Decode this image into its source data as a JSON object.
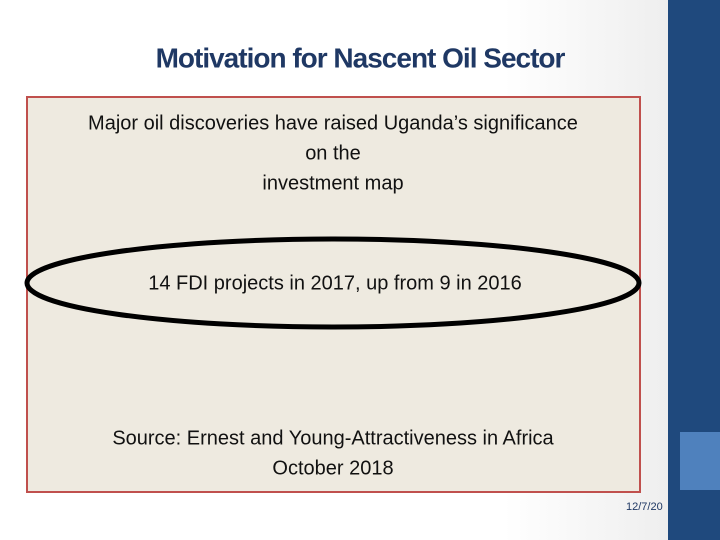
{
  "header": {
    "title": "Motivation for Nascent Oil Sector"
  },
  "box": {
    "intro_lines": [
      "Major oil discoveries have raised Uganda’s significance",
      "on the",
      "investment map"
    ],
    "highlight": "14 FDI projects  in 2017, up from 9 in 2016",
    "source_lines": [
      "Source: Ernest and Young-Attractiveness in Africa",
      "October 2018"
    ]
  },
  "footer": {
    "date": "12/7/20"
  }
}
